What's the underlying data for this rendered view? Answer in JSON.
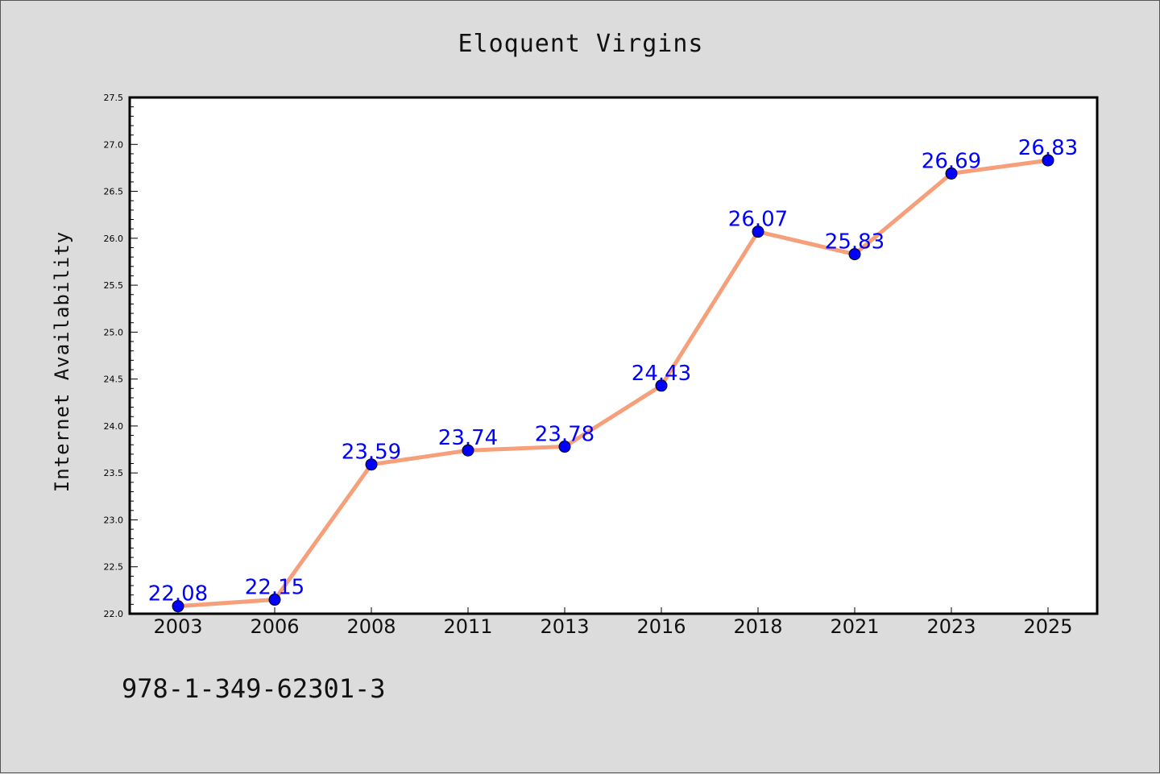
{
  "chart_data": {
    "type": "line",
    "title": "Eloquent Virgins",
    "xlabel": "",
    "ylabel": "Internet Availability",
    "categories": [
      "2003",
      "2006",
      "2008",
      "2011",
      "2013",
      "2016",
      "2018",
      "2021",
      "2023",
      "2025"
    ],
    "values": [
      22.08,
      22.15,
      23.59,
      23.74,
      23.78,
      24.43,
      26.07,
      25.83,
      26.69,
      26.83
    ],
    "data_labels": [
      "22.08",
      "22.15",
      "23.59",
      "23.74",
      "23.78",
      "24.43",
      "26.07",
      "25.83",
      "26.69",
      "26.83"
    ],
    "ylim": [
      22.0,
      27.5
    ],
    "yticks": [
      "22.0",
      "22.5",
      "23.0",
      "23.5",
      "24.0",
      "24.5",
      "25.0",
      "25.5",
      "26.0",
      "26.5",
      "27.0",
      "27.5"
    ],
    "line_color": "#f5a07a",
    "marker_color": "#0000ff",
    "label_color": "#0000ff",
    "grid": false,
    "legend": "none"
  },
  "annotation": "978-1-349-62301-3"
}
